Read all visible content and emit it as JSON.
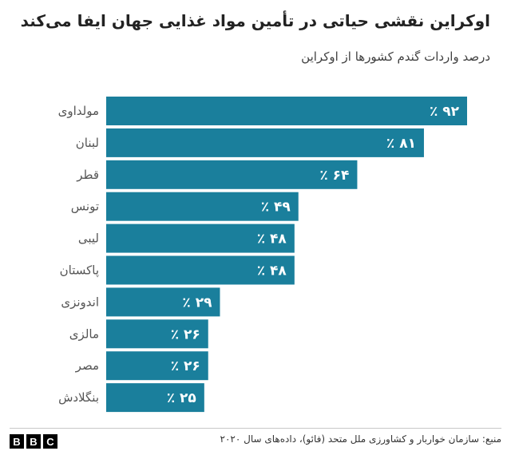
{
  "header": {
    "title": "اوکراین نقشی حیاتی در تأمین مواد غذایی جهان ایفا می‌کند",
    "subtitle": "درصد واردات گندم کشورها از اوکراین"
  },
  "chart_data": {
    "type": "bar",
    "orientation": "horizontal",
    "categories": [
      "مولداوی",
      "لبنان",
      "قطر",
      "تونس",
      "لیبی",
      "پاکستان",
      "اندونزی",
      "مالزی",
      "مصر",
      "بنگلادش"
    ],
    "values": [
      92,
      81,
      64,
      49,
      48,
      48,
      29,
      26,
      26,
      25
    ],
    "value_labels": [
      "٪ ۹۲",
      "٪ ۸۱",
      "٪ ۶۴",
      "٪ ۴۹",
      "٪ ۴۸",
      "٪ ۴۸",
      "٪ ۲۹",
      "٪ ۲۶",
      "٪ ۲۶",
      "٪ ۲۵"
    ],
    "xlim": [
      0,
      92
    ],
    "grid": false,
    "legend": "none",
    "bar_color": "#1a7f9c"
  },
  "footer": {
    "logo_letters": [
      "B",
      "B",
      "C"
    ],
    "source": "منبع: سازمان خواربار و کشاورزی ملل متحد (فائو)، داده‌های سال ۲۰۲۰"
  }
}
